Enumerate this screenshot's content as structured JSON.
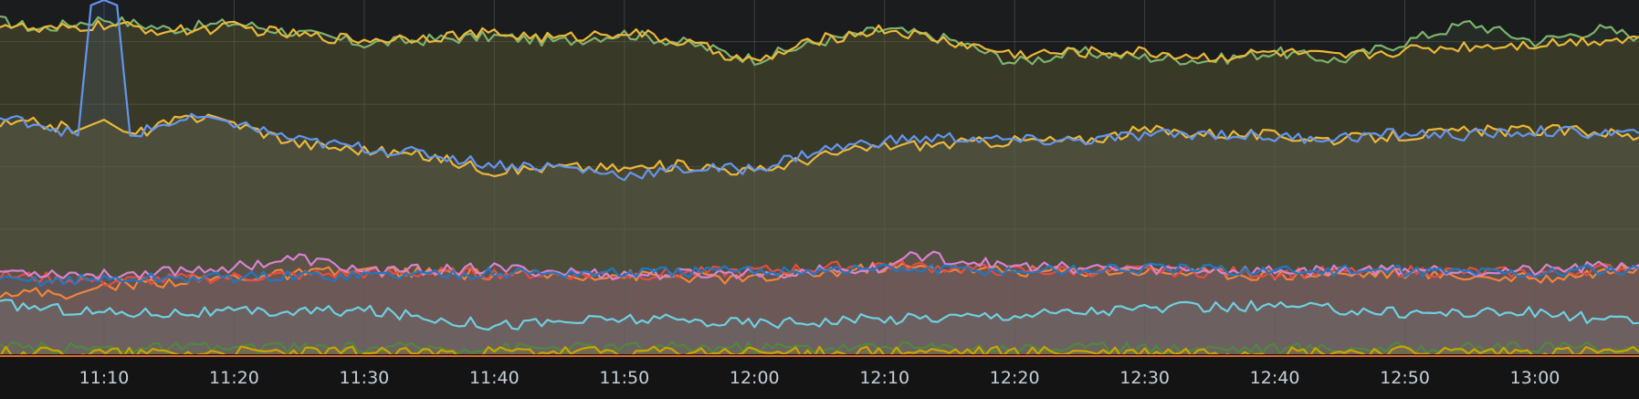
{
  "chart_data": {
    "type": "area",
    "title": "",
    "xlabel": "",
    "ylabel": "",
    "x_ticks": [
      "11:10",
      "11:20",
      "11:30",
      "11:40",
      "11:50",
      "12:00",
      "12:10",
      "12:20",
      "12:30",
      "12:40",
      "12:50",
      "13:00"
    ],
    "x_range": [
      "11:02",
      "13:08"
    ],
    "y_range": [
      0,
      340
    ],
    "grid": true,
    "legend": "none",
    "series": [
      {
        "color": "#7eb26d",
        "x": [
          "11:02",
          "11:05",
          "11:10",
          "11:15",
          "11:20",
          "11:25",
          "11:30",
          "11:35",
          "11:40",
          "11:45",
          "11:50",
          "11:55",
          "12:00",
          "12:05",
          "12:10",
          "12:15",
          "12:20",
          "12:25",
          "12:30",
          "12:35",
          "12:40",
          "12:45",
          "12:50",
          "12:55",
          "13:00",
          "13:05",
          "13:08"
        ],
        "values": [
          320,
          312,
          322,
          312,
          318,
          308,
          298,
          302,
          305,
          300,
          308,
          298,
          283,
          300,
          312,
          302,
          280,
          290,
          285,
          282,
          290,
          282,
          300,
          318,
          300,
          312,
          305
        ]
      },
      {
        "color": "#eab839",
        "x": [
          "11:02",
          "11:05",
          "11:10",
          "11:15",
          "11:20",
          "11:25",
          "11:30",
          "11:35",
          "11:40",
          "11:45",
          "11:50",
          "11:55",
          "12:00",
          "12:05",
          "12:10",
          "12:15",
          "12:20",
          "12:25",
          "12:30",
          "12:35",
          "12:40",
          "12:45",
          "12:50",
          "12:55",
          "13:00",
          "13:05",
          "13:08"
        ],
        "values": [
          318,
          310,
          316,
          310,
          314,
          306,
          302,
          305,
          308,
          303,
          310,
          298,
          280,
          302,
          312,
          300,
          288,
          290,
          290,
          285,
          290,
          285,
          292,
          296,
          298,
          302,
          304
        ]
      },
      {
        "color": "#eab839",
        "x": [
          "11:02",
          "11:05",
          "11:08",
          "11:10",
          "11:12",
          "11:15",
          "11:18",
          "11:20",
          "11:25",
          "11:30",
          "11:35",
          "11:40",
          "11:45",
          "11:50",
          "11:55",
          "12:00",
          "12:05",
          "12:10",
          "12:15",
          "12:20",
          "12:25",
          "12:30",
          "12:35",
          "12:40",
          "12:45",
          "12:50",
          "12:55",
          "13:00",
          "13:05",
          "13:08"
        ],
        "values": [
          220,
          222,
          215,
          225,
          210,
          222,
          230,
          222,
          202,
          196,
          190,
          176,
          180,
          178,
          182,
          175,
          190,
          200,
          202,
          205,
          205,
          215,
          212,
          210,
          206,
          210,
          214,
          215,
          214,
          208
        ]
      },
      {
        "color": "#6495ed",
        "x": [
          "11:02",
          "11:05",
          "11:08",
          "11:09",
          "11:10",
          "11:11",
          "11:12",
          "11:15",
          "11:18",
          "11:20",
          "11:25",
          "11:30",
          "11:35",
          "11:40",
          "11:45",
          "11:50",
          "11:55",
          "12:00",
          "12:05",
          "12:10",
          "12:15",
          "12:20",
          "12:25",
          "12:30",
          "12:35",
          "12:40",
          "12:45",
          "12:50",
          "12:55",
          "13:00",
          "13:05",
          "13:08"
        ],
        "values": [
          226,
          222,
          210,
          335,
          340,
          335,
          210,
          222,
          228,
          222,
          205,
          198,
          192,
          182,
          180,
          172,
          178,
          178,
          196,
          205,
          208,
          205,
          205,
          210,
          212,
          208,
          208,
          212,
          210,
          214,
          212,
          212
        ]
      },
      {
        "color": "#6ed0e0",
        "x": [
          "11:02",
          "11:10",
          "11:20",
          "11:30",
          "11:40",
          "11:50",
          "12:00",
          "12:10",
          "12:20",
          "12:30",
          "12:40",
          "12:50",
          "13:00",
          "13:08"
        ],
        "values": [
          48,
          40,
          40,
          42,
          28,
          34,
          30,
          34,
          38,
          44,
          46,
          40,
          40,
          30
        ]
      },
      {
        "color": "#ef843c",
        "x": [
          "11:02",
          "11:08",
          "11:10",
          "11:20",
          "11:30",
          "11:40",
          "11:50",
          "12:00",
          "12:10",
          "12:20",
          "12:30",
          "12:40",
          "12:50",
          "13:00",
          "13:08"
        ],
        "values": [
          60,
          58,
          66,
          74,
          80,
          76,
          76,
          72,
          84,
          80,
          80,
          76,
          78,
          72,
          84
        ]
      },
      {
        "color": "#e24d42",
        "x": [
          "11:02",
          "11:10",
          "11:20",
          "11:30",
          "11:40",
          "11:50",
          "12:00",
          "12:10",
          "12:20",
          "12:30",
          "12:40",
          "12:50",
          "13:00",
          "13:08"
        ],
        "values": [
          76,
          70,
          74,
          78,
          78,
          76,
          80,
          86,
          80,
          80,
          78,
          80,
          78,
          84
        ]
      },
      {
        "color": "#d683ce",
        "x": [
          "11:02",
          "11:10",
          "11:20",
          "11:25",
          "11:30",
          "11:40",
          "11:50",
          "12:00",
          "12:10",
          "12:12",
          "12:20",
          "12:30",
          "12:40",
          "12:50",
          "13:00",
          "13:08"
        ],
        "values": [
          80,
          76,
          84,
          92,
          80,
          82,
          76,
          78,
          82,
          96,
          84,
          82,
          80,
          82,
          80,
          86
        ]
      },
      {
        "color": "#1f78c1",
        "x": [
          "11:02",
          "11:10",
          "11:20",
          "11:30",
          "11:40",
          "11:50",
          "12:00",
          "12:10",
          "12:20",
          "12:30",
          "12:40",
          "12:50",
          "13:00",
          "13:08"
        ],
        "values": [
          70,
          72,
          74,
          76,
          78,
          78,
          80,
          82,
          80,
          82,
          80,
          80,
          78,
          82
        ]
      },
      {
        "color": "#508642",
        "x": [
          "11:02",
          "11:30",
          "12:00",
          "12:30",
          "13:08"
        ],
        "values": [
          6,
          6,
          7,
          6,
          6
        ]
      },
      {
        "color": "#cca300",
        "x": [
          "11:02",
          "11:30",
          "12:00",
          "12:30",
          "13:08"
        ],
        "values": [
          2,
          2,
          2,
          2,
          2
        ]
      }
    ]
  }
}
